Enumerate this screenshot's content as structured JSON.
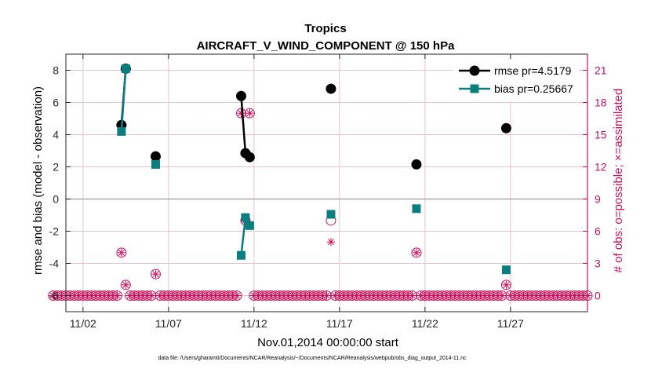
{
  "chart_data": {
    "type": "line",
    "title": "Tropics",
    "subtitle": "AIRCRAFT_V_WIND_COMPONENT @ 150 hPa",
    "xlabel": "Nov.01,2014 00:00:00 start",
    "ylabel": "rmse and bias (model - observation)",
    "ylabel_right": "# of obs: o=possible; ×=assimilated",
    "footnote": "data file: /Users/gharamti/Documents/NCAR/Reanalysis/~/Documents/NCAR/Reanalysis/webpub/obs_diag_output_2014-11.nc",
    "xlim": [
      0,
      30.5
    ],
    "ylim": [
      -7,
      9
    ],
    "ylim_right": [
      -1.5,
      22.5
    ],
    "x_ticks": [
      {
        "value": 1,
        "label": "11/02"
      },
      {
        "value": 6,
        "label": "11/07"
      },
      {
        "value": 11,
        "label": "11/12"
      },
      {
        "value": 16,
        "label": "11/17"
      },
      {
        "value": 21,
        "label": "11/22"
      },
      {
        "value": 26,
        "label": "11/27"
      }
    ],
    "y_ticks": [
      {
        "value": -6,
        "label": "-6"
      },
      {
        "value": -4,
        "label": "-4"
      },
      {
        "value": -2,
        "label": "-2"
      },
      {
        "value": 0,
        "label": "0"
      },
      {
        "value": 2,
        "label": "2"
      },
      {
        "value": 4,
        "label": "4"
      },
      {
        "value": 6,
        "label": "6"
      },
      {
        "value": 8,
        "label": "8"
      }
    ],
    "y_ticks_right": [
      {
        "value": 0,
        "label": "0"
      },
      {
        "value": 3,
        "label": "3"
      },
      {
        "value": 6,
        "label": "6"
      },
      {
        "value": 9,
        "label": "9"
      },
      {
        "value": 12,
        "label": "12"
      },
      {
        "value": 15,
        "label": "15"
      },
      {
        "value": 18,
        "label": "18"
      },
      {
        "value": 21,
        "label": "21"
      }
    ],
    "series": [
      {
        "name": "rmse pr=4.5179",
        "color": "#000000",
        "marker": "circle",
        "segments": [
          [
            [
              3.25,
              4.6
            ],
            [
              3.5,
              8.1
            ]
          ],
          [
            [
              5.25,
              2.65
            ]
          ],
          [
            [
              10.25,
              6.4
            ],
            [
              10.5,
              2.85
            ],
            [
              10.75,
              2.6
            ]
          ],
          [
            [
              15.5,
              6.85
            ]
          ],
          [
            [
              20.5,
              2.15
            ]
          ],
          [
            [
              25.75,
              4.4
            ]
          ]
        ]
      },
      {
        "name": "bias pr=0.25667",
        "color": "#0b7f80",
        "marker": "square",
        "segments": [
          [
            [
              3.25,
              4.2
            ],
            [
              3.5,
              8.1
            ]
          ],
          [
            [
              5.25,
              2.15
            ]
          ],
          [
            [
              10.25,
              -3.5
            ],
            [
              10.5,
              -1.15
            ],
            [
              10.75,
              -1.65
            ]
          ],
          [
            [
              15.5,
              -0.95
            ]
          ],
          [
            [
              20.5,
              -0.6
            ]
          ],
          [
            [
              25.75,
              -4.4
            ]
          ]
        ]
      }
    ],
    "obs_possible": [
      {
        "x": 3.25,
        "value": 4
      },
      {
        "x": 3.5,
        "value": 1
      },
      {
        "x": 5.25,
        "value": 2
      },
      {
        "x": 10.25,
        "value": 17
      },
      {
        "x": 10.5,
        "value": 7
      },
      {
        "x": 10.75,
        "value": 17
      },
      {
        "x": 15.5,
        "value": 7
      },
      {
        "x": 20.5,
        "value": 4
      },
      {
        "x": 25.75,
        "value": 1
      }
    ],
    "obs_assimilated": [
      {
        "x": 3.25,
        "value": 4
      },
      {
        "x": 3.5,
        "value": 1
      },
      {
        "x": 5.25,
        "value": 2
      },
      {
        "x": 10.25,
        "value": 17
      },
      {
        "x": 10.5,
        "value": 7
      },
      {
        "x": 10.75,
        "value": 17
      },
      {
        "x": 15.5,
        "value": 5
      },
      {
        "x": 20.5,
        "value": 4
      },
      {
        "x": 25.75,
        "value": 1
      }
    ],
    "zero_obs_x_start": -0.75,
    "zero_obs_x_end": 30.5,
    "zero_obs_step": 0.25,
    "colors": {
      "rmse": "#000000",
      "bias": "#0b7f80",
      "obs": "#cc0f5a",
      "grid": "#e3c4cc",
      "zero_line": "#b0a8ab"
    },
    "legend": {
      "position": "top-right",
      "entries": [
        "rmse pr=4.5179",
        "bias pr=0.25667"
      ]
    }
  }
}
